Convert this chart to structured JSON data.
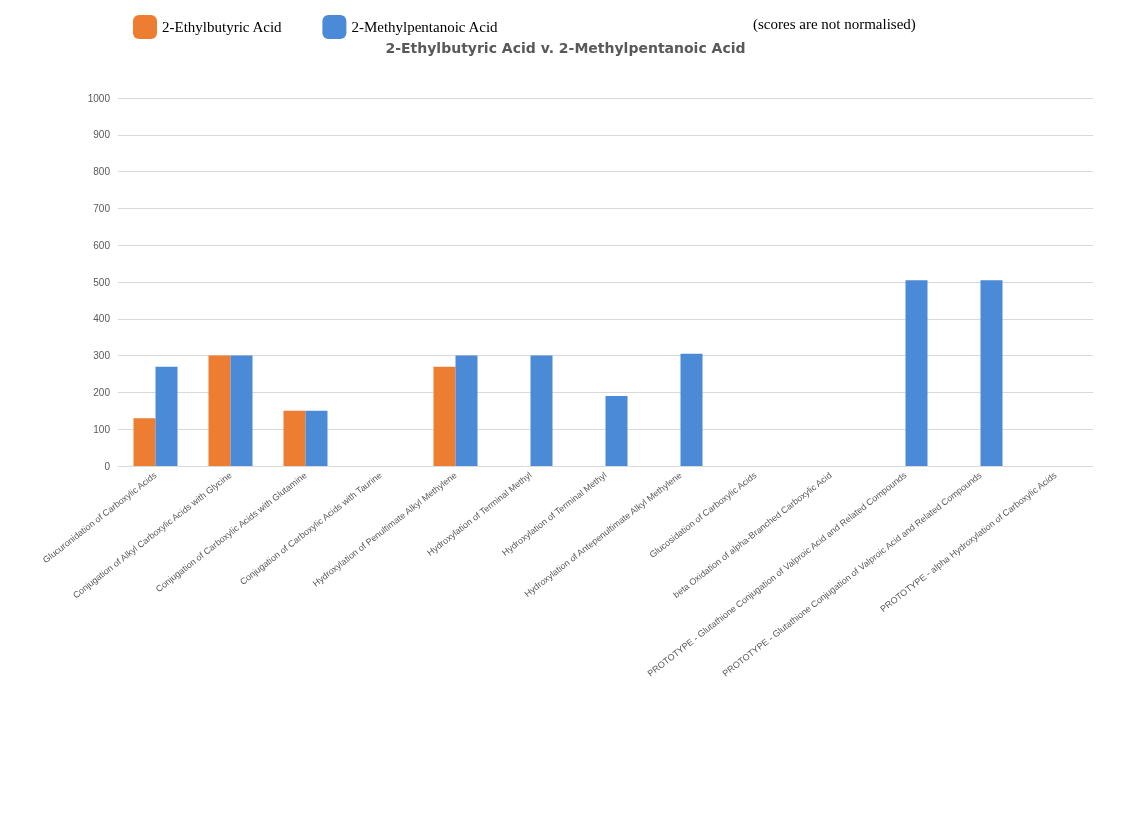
{
  "chart_data": {
    "type": "bar",
    "title": "2-Ethylbutyric Acid v. 2-Methylpentanoic Acid",
    "categories": [
      "Glucuronidation of Carboxylic Acids",
      "Conjugation of Alkyl Carboxylic Acids with Glycine",
      "Conjugation of Carboxylic Acids with Glutamine",
      "Conjugation of Carboxylic Acids with Taurine",
      "Hydroxylation of Penultimate Alkyl Methylene",
      "Hydroxylation of Terminal Methyl",
      "Hydroxylation of Terminal Methyl",
      "Hydroxylation of Antepenultimate Alkyl Methylene",
      "Glucosidation of Carboxylic Acids",
      "beta Oxidation of alpha-Branched Carboxylic Acid",
      "PROTOTYPE - Glutathione Conjugation of Valproic Acid and Related Compounds",
      "PROTOTYPE - Glutathione Conjugation of Valproic Acid and Related Compounds",
      "PROTOTYPE - alpha Hydroxylation of Carboxylic Acids"
    ],
    "series": [
      {
        "name": "2-Ethylbutyric Acid",
        "color": "#ed7d31",
        "values": [
          130,
          300,
          150,
          0,
          270,
          0,
          0,
          0,
          0,
          0,
          null,
          null,
          null
        ]
      },
      {
        "name": "2-Methylpentanoic Acid",
        "color": "#4a8ad6",
        "values": [
          270,
          300,
          150,
          0,
          300,
          300,
          190,
          305,
          0,
          0,
          505,
          505,
          0
        ]
      }
    ],
    "ylim": [
      0,
      1000
    ],
    "yticks": [
      0,
      100,
      200,
      300,
      400,
      500,
      600,
      700,
      800,
      900,
      1000
    ],
    "grid": "y",
    "legend": "top",
    "annotations": [
      "(scores are not normalised)"
    ]
  }
}
